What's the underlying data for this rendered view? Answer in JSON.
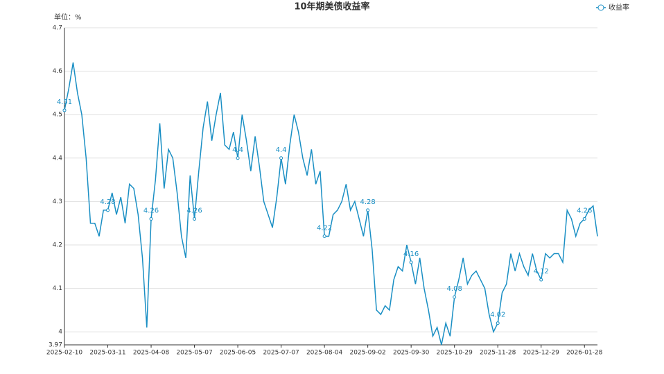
{
  "chart_data": {
    "type": "line",
    "title": "10年期美债收益率",
    "y_unit_label": "单位：%",
    "categories": [
      "2025-02-10",
      null,
      null,
      null,
      null,
      null,
      null,
      null,
      null,
      null,
      "2025-03-11",
      null,
      null,
      null,
      null,
      null,
      null,
      null,
      null,
      null,
      "2025-04-08",
      null,
      null,
      null,
      null,
      null,
      null,
      null,
      null,
      null,
      "2025-05-07",
      null,
      null,
      null,
      null,
      null,
      null,
      null,
      null,
      null,
      "2025-06-05",
      null,
      null,
      null,
      null,
      null,
      null,
      null,
      null,
      null,
      "2025-07-07",
      null,
      null,
      null,
      null,
      null,
      null,
      null,
      null,
      null,
      "2025-08-04",
      null,
      null,
      null,
      null,
      null,
      null,
      null,
      null,
      null,
      "2025-09-02",
      null,
      null,
      null,
      null,
      null,
      null,
      null,
      null,
      null,
      "2025-09-30",
      null,
      null,
      null,
      null,
      null,
      null,
      null,
      null,
      null,
      "2025-10-29",
      null,
      null,
      null,
      null,
      null,
      null,
      null,
      null,
      null,
      "2025-11-28",
      null,
      null,
      null,
      null,
      null,
      null,
      null,
      null,
      null,
      "2025-12-29",
      null,
      null,
      null,
      null,
      null,
      null,
      null,
      null,
      null,
      "2026-01-28",
      null,
      null,
      null
    ],
    "series": [
      {
        "name": "收益率",
        "color": "#1a8fc4",
        "values": [
          4.51,
          4.56,
          4.62,
          4.55,
          4.5,
          4.4,
          4.25,
          4.25,
          4.22,
          4.28,
          4.28,
          4.32,
          4.27,
          4.31,
          4.25,
          4.34,
          4.33,
          4.27,
          4.17,
          4.01,
          4.26,
          4.35,
          4.48,
          4.33,
          4.42,
          4.4,
          4.32,
          4.22,
          4.17,
          4.36,
          4.26,
          4.37,
          4.47,
          4.53,
          4.44,
          4.5,
          4.55,
          4.43,
          4.42,
          4.46,
          4.4,
          4.5,
          4.44,
          4.37,
          4.45,
          4.38,
          4.3,
          4.27,
          4.24,
          4.31,
          4.4,
          4.34,
          4.43,
          4.5,
          4.46,
          4.4,
          4.36,
          4.42,
          4.34,
          4.37,
          4.22,
          4.22,
          4.27,
          4.28,
          4.3,
          4.34,
          4.28,
          4.3,
          4.26,
          4.22,
          4.28,
          4.19,
          4.05,
          4.04,
          4.06,
          4.05,
          4.12,
          4.15,
          4.14,
          4.2,
          4.16,
          4.11,
          4.17,
          4.1,
          4.05,
          3.99,
          4.01,
          3.97,
          4.02,
          3.99,
          4.08,
          4.12,
          4.17,
          4.11,
          4.13,
          4.14,
          4.12,
          4.1,
          4.04,
          4.0,
          4.02,
          4.09,
          4.11,
          4.18,
          4.14,
          4.18,
          4.15,
          4.13,
          4.18,
          4.14,
          4.12,
          4.18,
          4.17,
          4.18,
          4.18,
          4.16,
          4.28,
          4.26,
          4.22,
          4.25,
          4.26,
          4.28,
          4.29,
          4.22
        ],
        "value_labels": [
          "4.51",
          null,
          null,
          null,
          null,
          null,
          null,
          null,
          null,
          null,
          "4.28",
          null,
          null,
          null,
          null,
          null,
          null,
          null,
          null,
          null,
          "4.26",
          null,
          null,
          null,
          null,
          null,
          null,
          null,
          null,
          null,
          "4.26",
          null,
          null,
          null,
          null,
          null,
          null,
          null,
          null,
          null,
          "4.4",
          null,
          null,
          null,
          null,
          null,
          null,
          null,
          null,
          null,
          "4.4",
          null,
          null,
          null,
          null,
          null,
          null,
          null,
          null,
          null,
          "4.22",
          null,
          null,
          null,
          null,
          null,
          null,
          null,
          null,
          null,
          "4.28",
          null,
          null,
          null,
          null,
          null,
          null,
          null,
          null,
          null,
          "4.16",
          null,
          null,
          null,
          null,
          null,
          null,
          null,
          null,
          null,
          "4.08",
          null,
          null,
          null,
          null,
          null,
          null,
          null,
          null,
          null,
          "4.02",
          null,
          null,
          null,
          null,
          null,
          null,
          null,
          null,
          null,
          "4.12",
          null,
          null,
          null,
          null,
          null,
          null,
          null,
          null,
          null,
          "4.26",
          null,
          null,
          null
        ]
      }
    ],
    "ylim": [
      3.97,
      4.7
    ],
    "yticks": [
      3.97,
      4,
      4.1,
      4.2,
      4.3,
      4.4,
      4.5,
      4.6,
      4.7
    ],
    "grid": true,
    "legend": "top-right"
  }
}
